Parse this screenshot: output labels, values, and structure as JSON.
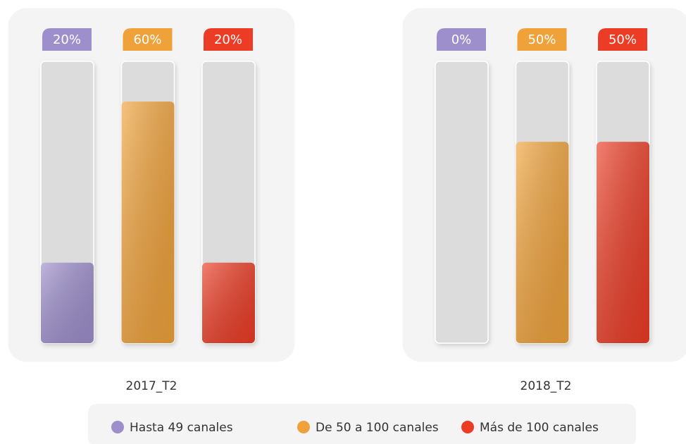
{
  "chart_data": {
    "type": "bar",
    "categories": [
      "2017_T2",
      "2018_T2"
    ],
    "series": [
      {
        "name": "Hasta 49 canales",
        "color": "#9d8fcc",
        "values": [
          20,
          0
        ],
        "value_labels": [
          "20%",
          "0%"
        ]
      },
      {
        "name": "De 50 a 100 canales",
        "color": "#f0a23a",
        "values": [
          60,
          50
        ],
        "value_labels": [
          "60%",
          "50%"
        ]
      },
      {
        "name": "Más de 100 canales",
        "color": "#ec3c25",
        "values": [
          20,
          50
        ],
        "value_labels": [
          "20%",
          "50%"
        ]
      }
    ],
    "ylim": [
      0,
      70
    ]
  }
}
